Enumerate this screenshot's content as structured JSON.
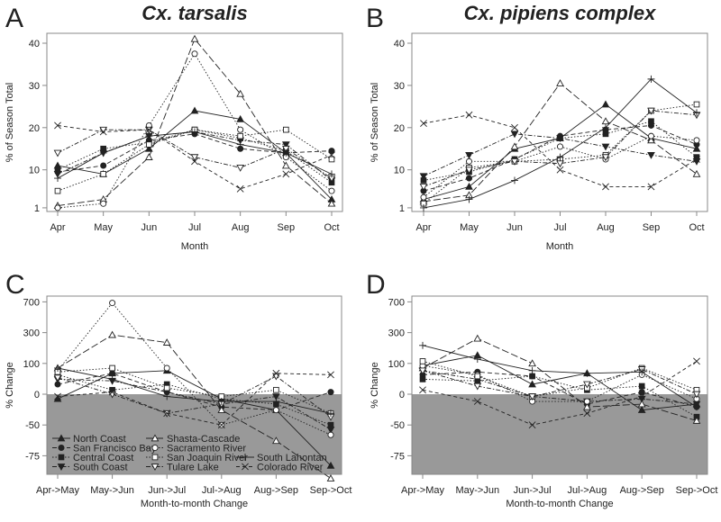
{
  "chart_data": [
    {
      "panel": "A",
      "type": "line",
      "title": "Cx. tarsalis",
      "xlabel": "Month",
      "ylabel": "% of Season Total",
      "categories": [
        "Apr",
        "May",
        "Jun",
        "Jul",
        "Aug",
        "Sep",
        "Oct"
      ],
      "yticks": [
        1,
        10,
        20,
        30,
        40
      ],
      "ylim": [
        1,
        40
      ],
      "series": [
        {
          "name": "North Coast",
          "values": [
            11,
            9,
            15,
            24,
            22,
            14,
            3
          ]
        },
        {
          "name": "San Francisco Bay",
          "values": [
            9.5,
            11,
            17,
            18.5,
            15,
            14,
            14.5
          ]
        },
        {
          "name": "Central Coast",
          "values": [
            10,
            15,
            16.5,
            19.5,
            17.5,
            14.5,
            7
          ]
        },
        {
          "name": "South Coast",
          "values": [
            9,
            14,
            18,
            19,
            17,
            16,
            7.5
          ]
        },
        {
          "name": "Shasta-Cascade",
          "values": [
            1.5,
            3,
            13,
            41,
            28,
            11,
            2
          ]
        },
        {
          "name": "Sacramento River",
          "values": [
            1,
            2,
            20.5,
            37.5,
            19.5,
            13,
            5
          ]
        },
        {
          "name": "San Joaquin River",
          "values": [
            5,
            9,
            16,
            19.5,
            18,
            19.5,
            12.5
          ]
        },
        {
          "name": "Tulare Lake",
          "values": [
            14,
            19.5,
            19.5,
            13,
            10.5,
            15,
            8
          ]
        },
        {
          "name": "South Lahontan",
          "values": [
            8,
            14,
            18,
            19,
            16,
            14,
            9
          ]
        },
        {
          "name": "Colorado River",
          "values": [
            20.5,
            19,
            19.5,
            12,
            5.5,
            9,
            13.5
          ]
        }
      ]
    },
    {
      "panel": "B",
      "type": "line",
      "title": "Cx. pipiens complex",
      "xlabel": "Month",
      "ylabel": "% of Season Total",
      "categories": [
        "Apr",
        "May",
        "Jun",
        "Jul",
        "Aug",
        "Sep",
        "Oct"
      ],
      "yticks": [
        1,
        10,
        20,
        30,
        40
      ],
      "ylim": [
        1,
        40
      ],
      "series": [
        {
          "name": "North Coast",
          "values": [
            3,
            6,
            15,
            17.5,
            25.5,
            17.5,
            15
          ]
        },
        {
          "name": "San Francisco Bay",
          "values": [
            5,
            8,
            12.5,
            18,
            19.5,
            20.5,
            16
          ]
        },
        {
          "name": "Central Coast",
          "values": [
            7.5,
            9.5,
            12.5,
            17.5,
            18.5,
            21.5,
            13
          ]
        },
        {
          "name": "South Coast",
          "values": [
            8.5,
            13.5,
            18.5,
            17.5,
            15.5,
            13.5,
            12
          ]
        },
        {
          "name": "Shasta-Cascade",
          "values": [
            2.5,
            4,
            15.5,
            30.5,
            21.5,
            17,
            9
          ]
        },
        {
          "name": "Sacramento River",
          "values": [
            3.5,
            12,
            12,
            15.5,
            12.5,
            18,
            17
          ]
        },
        {
          "name": "San Joaquin River",
          "values": [
            2,
            10.5,
            12,
            12.5,
            13.5,
            24,
            25.5
          ]
        },
        {
          "name": "Tulare Lake",
          "values": [
            6,
            10,
            12,
            11.5,
            13,
            24,
            23
          ]
        },
        {
          "name": "South Lahontan",
          "values": [
            1,
            3,
            7.5,
            13,
            20,
            31.5,
            23.5
          ]
        },
        {
          "name": "Colorado River",
          "values": [
            21,
            23,
            20,
            10,
            6,
            6,
            12.5
          ]
        }
      ]
    },
    {
      "panel": "C",
      "type": "line",
      "title": "",
      "xlabel": "Month-to-month Change",
      "ylabel": "% Change",
      "categories": [
        "Apr->May",
        "May->Jun",
        "Jun->Jul",
        "Jul->Aug",
        "Aug->Sep",
        "Sep->Oct"
      ],
      "yticks": [
        700,
        300,
        100,
        0,
        -50,
        -75
      ],
      "yscale": "log2(1+%/100)",
      "legend": "bottom-left",
      "series": [
        {
          "name": "North Coast",
          "values": [
            -10,
            60,
            70,
            -10,
            -30,
            -80
          ]
        },
        {
          "name": "San Francisco Bay",
          "values": [
            25,
            60,
            5,
            -25,
            -30,
            5
          ]
        },
        {
          "name": "Central Coast",
          "values": [
            55,
            10,
            25,
            -10,
            -20,
            -50
          ]
        },
        {
          "name": "South Coast",
          "values": [
            40,
            35,
            5,
            -20,
            -5,
            -55
          ]
        },
        {
          "name": "Shasta-Cascade",
          "values": [
            80,
            280,
            220,
            -30,
            -65,
            -85
          ]
        },
        {
          "name": "Sacramento River",
          "values": [
            70,
            680,
            80,
            -50,
            -30,
            -60
          ]
        },
        {
          "name": "San Joaquin River",
          "values": [
            65,
            80,
            15,
            -5,
            10,
            -35
          ]
        },
        {
          "name": "Tulare Lake",
          "values": [
            45,
            0,
            -35,
            -20,
            50,
            -40
          ]
        },
        {
          "name": "South Lahontan",
          "values": [
            80,
            40,
            -5,
            -15,
            -15,
            -35
          ]
        },
        {
          "name": "Colorado River",
          "values": [
            -5,
            5,
            -35,
            -50,
            60,
            55
          ]
        }
      ]
    },
    {
      "panel": "D",
      "type": "line",
      "title": "",
      "xlabel": "Month-to-month Change",
      "ylabel": "% Change",
      "categories": [
        "Apr->May",
        "May->Jun",
        "Jun->Jul",
        "Jul->Aug",
        "Aug->Sep",
        "Sep->Oct"
      ],
      "yticks": [
        700,
        300,
        100,
        0,
        -50,
        -75
      ],
      "yscale": "log2(1+%/100)",
      "series": [
        {
          "name": "North Coast",
          "values": [
            90,
            140,
            25,
            60,
            -30,
            -20
          ]
        },
        {
          "name": "San Francisco Bay",
          "values": [
            55,
            65,
            50,
            -20,
            5,
            -25
          ]
        },
        {
          "name": "Central Coast",
          "values": [
            40,
            35,
            50,
            10,
            20,
            -40
          ]
        },
        {
          "name": "South Coast",
          "values": [
            70,
            40,
            -5,
            -15,
            -10,
            -20
          ]
        },
        {
          "name": "Shasta-Cascade",
          "values": [
            80,
            250,
            100,
            -25,
            -20,
            -45
          ]
        },
        {
          "name": "Sacramento River",
          "values": [
            90,
            55,
            -15,
            -15,
            55,
            -10
          ]
        },
        {
          "name": "San Joaquin River",
          "values": [
            110,
            50,
            -5,
            15,
            80,
            10
          ]
        },
        {
          "name": "Tulare Lake",
          "values": [
            70,
            20,
            -5,
            25,
            75,
            0
          ]
        },
        {
          "name": "South Lahontan",
          "values": [
            200,
            120,
            70,
            60,
            65,
            -25
          ]
        },
        {
          "name": "Colorado River",
          "values": [
            10,
            -15,
            -50,
            -35,
            -5,
            110
          ]
        }
      ]
    }
  ],
  "colors": {
    "line": "#222222",
    "axis": "#888888",
    "negative_region": "#999999"
  }
}
